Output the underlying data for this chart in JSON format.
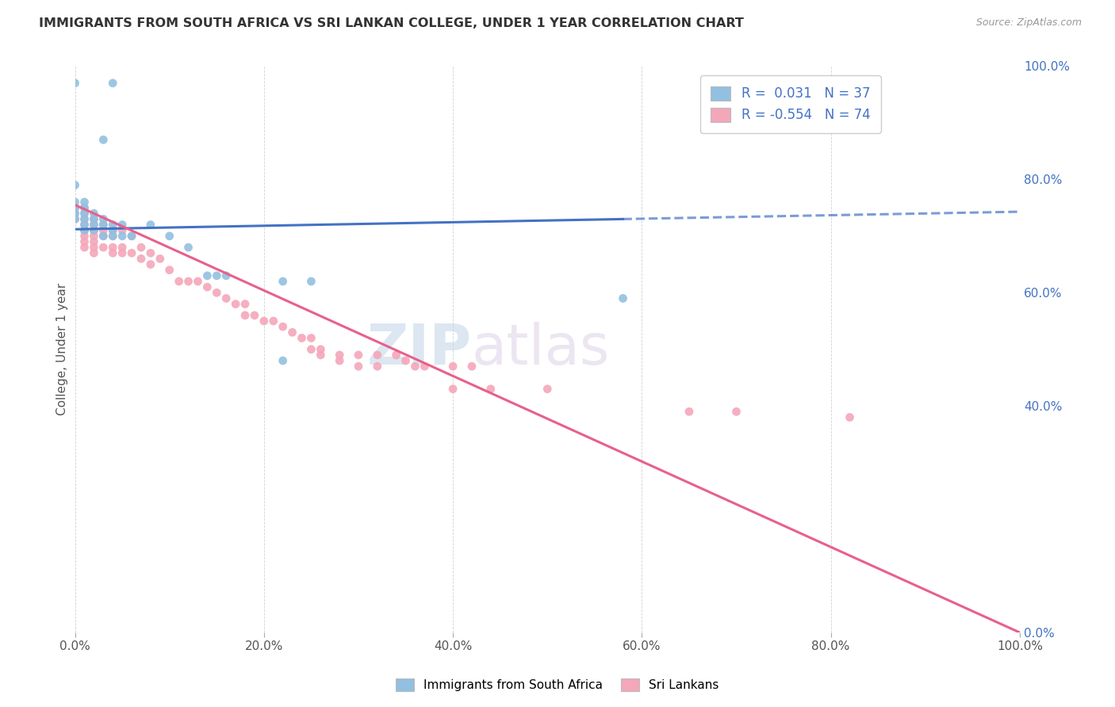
{
  "title": "IMMIGRANTS FROM SOUTH AFRICA VS SRI LANKAN COLLEGE, UNDER 1 YEAR CORRELATION CHART",
  "source": "Source: ZipAtlas.com",
  "xlabel": "",
  "ylabel": "College, Under 1 year",
  "xmin": 0.0,
  "xmax": 1.0,
  "ymin": 0.0,
  "ymax": 1.0,
  "legend_r1": "R =  0.031",
  "legend_n1": "N = 37",
  "legend_r2": "R = -0.554",
  "legend_n2": "N = 74",
  "color_blue": "#92C0E0",
  "color_pink": "#F4A7B9",
  "color_blue_line": "#4472C4",
  "color_pink_line": "#E8608A",
  "watermark_zip": "ZIP",
  "watermark_atlas": "atlas",
  "blue_scatter": [
    [
      0.0,
      0.97
    ],
    [
      0.04,
      0.97
    ],
    [
      0.03,
      0.87
    ],
    [
      0.0,
      0.79
    ],
    [
      0.0,
      0.76
    ],
    [
      0.0,
      0.75
    ],
    [
      0.0,
      0.74
    ],
    [
      0.0,
      0.73
    ],
    [
      0.01,
      0.76
    ],
    [
      0.01,
      0.75
    ],
    [
      0.01,
      0.74
    ],
    [
      0.01,
      0.73
    ],
    [
      0.01,
      0.72
    ],
    [
      0.01,
      0.71
    ],
    [
      0.02,
      0.74
    ],
    [
      0.02,
      0.73
    ],
    [
      0.02,
      0.72
    ],
    [
      0.02,
      0.71
    ],
    [
      0.03,
      0.73
    ],
    [
      0.03,
      0.72
    ],
    [
      0.03,
      0.7
    ],
    [
      0.04,
      0.72
    ],
    [
      0.04,
      0.71
    ],
    [
      0.04,
      0.7
    ],
    [
      0.05,
      0.72
    ],
    [
      0.05,
      0.7
    ],
    [
      0.06,
      0.7
    ],
    [
      0.08,
      0.72
    ],
    [
      0.1,
      0.7
    ],
    [
      0.12,
      0.68
    ],
    [
      0.14,
      0.63
    ],
    [
      0.15,
      0.63
    ],
    [
      0.16,
      0.63
    ],
    [
      0.22,
      0.62
    ],
    [
      0.22,
      0.48
    ],
    [
      0.25,
      0.62
    ],
    [
      0.58,
      0.59
    ]
  ],
  "pink_scatter": [
    [
      0.0,
      0.75
    ],
    [
      0.0,
      0.74
    ],
    [
      0.0,
      0.73
    ],
    [
      0.01,
      0.75
    ],
    [
      0.01,
      0.74
    ],
    [
      0.01,
      0.73
    ],
    [
      0.01,
      0.72
    ],
    [
      0.01,
      0.71
    ],
    [
      0.01,
      0.7
    ],
    [
      0.01,
      0.69
    ],
    [
      0.01,
      0.68
    ],
    [
      0.02,
      0.73
    ],
    [
      0.02,
      0.72
    ],
    [
      0.02,
      0.71
    ],
    [
      0.02,
      0.7
    ],
    [
      0.02,
      0.69
    ],
    [
      0.02,
      0.68
    ],
    [
      0.02,
      0.67
    ],
    [
      0.03,
      0.72
    ],
    [
      0.03,
      0.71
    ],
    [
      0.03,
      0.7
    ],
    [
      0.03,
      0.68
    ],
    [
      0.04,
      0.71
    ],
    [
      0.04,
      0.7
    ],
    [
      0.04,
      0.68
    ],
    [
      0.04,
      0.67
    ],
    [
      0.05,
      0.71
    ],
    [
      0.05,
      0.68
    ],
    [
      0.05,
      0.67
    ],
    [
      0.06,
      0.7
    ],
    [
      0.06,
      0.67
    ],
    [
      0.07,
      0.68
    ],
    [
      0.07,
      0.66
    ],
    [
      0.08,
      0.67
    ],
    [
      0.08,
      0.65
    ],
    [
      0.09,
      0.66
    ],
    [
      0.1,
      0.64
    ],
    [
      0.11,
      0.62
    ],
    [
      0.12,
      0.62
    ],
    [
      0.13,
      0.62
    ],
    [
      0.14,
      0.61
    ],
    [
      0.15,
      0.6
    ],
    [
      0.16,
      0.59
    ],
    [
      0.17,
      0.58
    ],
    [
      0.18,
      0.58
    ],
    [
      0.18,
      0.56
    ],
    [
      0.19,
      0.56
    ],
    [
      0.2,
      0.55
    ],
    [
      0.21,
      0.55
    ],
    [
      0.22,
      0.54
    ],
    [
      0.23,
      0.53
    ],
    [
      0.24,
      0.52
    ],
    [
      0.25,
      0.52
    ],
    [
      0.25,
      0.5
    ],
    [
      0.26,
      0.5
    ],
    [
      0.26,
      0.49
    ],
    [
      0.28,
      0.49
    ],
    [
      0.28,
      0.48
    ],
    [
      0.3,
      0.49
    ],
    [
      0.3,
      0.47
    ],
    [
      0.32,
      0.49
    ],
    [
      0.32,
      0.47
    ],
    [
      0.34,
      0.49
    ],
    [
      0.35,
      0.48
    ],
    [
      0.36,
      0.47
    ],
    [
      0.37,
      0.47
    ],
    [
      0.4,
      0.47
    ],
    [
      0.4,
      0.43
    ],
    [
      0.42,
      0.47
    ],
    [
      0.44,
      0.43
    ],
    [
      0.5,
      0.43
    ],
    [
      0.65,
      0.39
    ],
    [
      0.7,
      0.39
    ],
    [
      0.82,
      0.38
    ]
  ],
  "blue_line_solid": [
    [
      0.0,
      0.712
    ],
    [
      0.58,
      0.73
    ]
  ],
  "blue_line_dash": [
    [
      0.58,
      0.73
    ],
    [
      1.0,
      0.743
    ]
  ],
  "pink_line": [
    [
      0.0,
      0.755
    ],
    [
      1.0,
      0.0
    ]
  ]
}
